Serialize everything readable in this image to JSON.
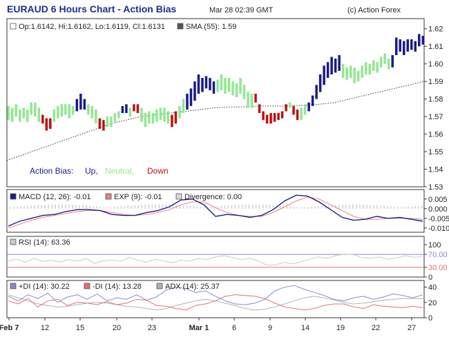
{
  "header": {
    "title": "EURAUD 6 Hours Chart - Action Bias",
    "timestamp": "Mar 28 02:39 GMT",
    "copyright": "(c) Action Forex"
  },
  "colors": {
    "up": "#1a1a8c",
    "neutral": "#90e890",
    "down": "#c01010",
    "sma": "#333333",
    "macd": "#1a1a8c",
    "ema": "#e88080",
    "divergence": "#d8d8d8",
    "rsi": "#8888cc",
    "rsi_level_high": "#8888cc",
    "rsi_level_low": "#e07070",
    "plus_di": "#8888cc",
    "minus_di": "#e07070",
    "adx": "#b0b0b0"
  },
  "chart_data": [
    {
      "type": "bar",
      "name": "price",
      "legend": {
        "ohlc": "Op:1.6142, Hi:1.6162, Lo:1.6119, Cl:1.6131",
        "sma": "SMA (55): 1.59"
      },
      "bias_labels": {
        "label": "Action Bias:",
        "up": "Up,",
        "neutral": "Neutral,",
        "down": "Down"
      },
      "ylim": [
        1.53,
        1.625
      ],
      "y_ticks": [
        "1.62",
        "1.61",
        "1.60",
        "1.59",
        "1.58",
        "1.57",
        "1.56",
        "1.55",
        "1.54",
        "1.53"
      ],
      "x_tick_labels": [
        "Feb 7",
        "12",
        "15",
        "20",
        "23",
        "Mar 1",
        "6",
        "9",
        "14",
        "19",
        "22",
        "27"
      ],
      "bars": [
        [
          1.568,
          1.576,
          "n"
        ],
        [
          1.567,
          1.575,
          "n"
        ],
        [
          1.57,
          1.577,
          "n"
        ],
        [
          1.567,
          1.574,
          "n"
        ],
        [
          1.569,
          1.575,
          "n"
        ],
        [
          1.567,
          1.574,
          "n"
        ],
        [
          1.571,
          1.578,
          "n"
        ],
        [
          1.57,
          1.578,
          "n"
        ],
        [
          1.567,
          1.575,
          "n"
        ],
        [
          1.566,
          1.571,
          "d"
        ],
        [
          1.562,
          1.569,
          "d"
        ],
        [
          1.563,
          1.569,
          "d"
        ],
        [
          1.567,
          1.574,
          "n"
        ],
        [
          1.569,
          1.576,
          "n"
        ],
        [
          1.57,
          1.577,
          "n"
        ],
        [
          1.571,
          1.577,
          "n"
        ],
        [
          1.569,
          1.577,
          "n"
        ],
        [
          1.571,
          1.576,
          "n"
        ],
        [
          1.573,
          1.58,
          "u"
        ],
        [
          1.574,
          1.583,
          "u"
        ],
        [
          1.574,
          1.58,
          "u"
        ],
        [
          1.571,
          1.577,
          "n"
        ],
        [
          1.569,
          1.576,
          "n"
        ],
        [
          1.566,
          1.574,
          "n"
        ],
        [
          1.563,
          1.569,
          "d"
        ],
        [
          1.562,
          1.568,
          "d"
        ],
        [
          1.564,
          1.57,
          "n"
        ],
        [
          1.564,
          1.57,
          "n"
        ],
        [
          1.567,
          1.572,
          "n"
        ],
        [
          1.569,
          1.573,
          "n"
        ],
        [
          1.572,
          1.576,
          "u"
        ],
        [
          1.572,
          1.577,
          "u"
        ],
        [
          1.57,
          1.575,
          "n"
        ],
        [
          1.573,
          1.577,
          "d"
        ],
        [
          1.572,
          1.577,
          "d"
        ],
        [
          1.567,
          1.575,
          "n"
        ],
        [
          1.564,
          1.572,
          "n"
        ],
        [
          1.566,
          1.573,
          "n"
        ],
        [
          1.566,
          1.572,
          "n"
        ],
        [
          1.567,
          1.574,
          "n"
        ],
        [
          1.568,
          1.575,
          "n"
        ],
        [
          1.567,
          1.575,
          "n"
        ],
        [
          1.566,
          1.573,
          "n"
        ],
        [
          1.564,
          1.571,
          "d"
        ],
        [
          1.566,
          1.573,
          "d"
        ],
        [
          1.569,
          1.576,
          "n"
        ],
        [
          1.572,
          1.58,
          "n"
        ],
        [
          1.574,
          1.583,
          "u"
        ],
        [
          1.576,
          1.586,
          "u"
        ],
        [
          1.579,
          1.59,
          "u"
        ],
        [
          1.583,
          1.594,
          "u"
        ],
        [
          1.584,
          1.592,
          "u"
        ],
        [
          1.586,
          1.593,
          "u"
        ],
        [
          1.585,
          1.592,
          "u"
        ],
        [
          1.583,
          1.59,
          "u"
        ],
        [
          1.584,
          1.591,
          "n"
        ],
        [
          1.585,
          1.594,
          "n"
        ],
        [
          1.583,
          1.592,
          "n"
        ],
        [
          1.584,
          1.592,
          "n"
        ],
        [
          1.582,
          1.59,
          "n"
        ],
        [
          1.581,
          1.589,
          "n"
        ],
        [
          1.583,
          1.592,
          "n"
        ],
        [
          1.58,
          1.588,
          "n"
        ],
        [
          1.575,
          1.584,
          "n"
        ],
        [
          1.575,
          1.583,
          "n"
        ],
        [
          1.578,
          1.583,
          "d"
        ],
        [
          1.572,
          1.577,
          "d"
        ],
        [
          1.568,
          1.573,
          "d"
        ],
        [
          1.566,
          1.571,
          "d"
        ],
        [
          1.566,
          1.572,
          "d"
        ],
        [
          1.567,
          1.572,
          "d"
        ],
        [
          1.568,
          1.572,
          "d"
        ],
        [
          1.569,
          1.573,
          "d"
        ],
        [
          1.573,
          1.577,
          "d"
        ],
        [
          1.575,
          1.578,
          "n"
        ],
        [
          1.571,
          1.576,
          "d"
        ],
        [
          1.568,
          1.574,
          "d"
        ],
        [
          1.568,
          1.575,
          "n"
        ],
        [
          1.571,
          1.577,
          "n"
        ],
        [
          1.573,
          1.578,
          "u"
        ],
        [
          1.576,
          1.582,
          "u"
        ],
        [
          1.58,
          1.588,
          "u"
        ],
        [
          1.584,
          1.594,
          "u"
        ],
        [
          1.588,
          1.599,
          "u"
        ],
        [
          1.592,
          1.601,
          "u"
        ],
        [
          1.594,
          1.604,
          "u"
        ],
        [
          1.595,
          1.603,
          "u"
        ],
        [
          1.596,
          1.605,
          "u"
        ],
        [
          1.592,
          1.6,
          "n"
        ],
        [
          1.591,
          1.598,
          "n"
        ],
        [
          1.592,
          1.599,
          "n"
        ],
        [
          1.589,
          1.598,
          "n"
        ],
        [
          1.59,
          1.596,
          "n"
        ],
        [
          1.592,
          1.599,
          "n"
        ],
        [
          1.594,
          1.601,
          "n"
        ],
        [
          1.594,
          1.6,
          "n"
        ],
        [
          1.596,
          1.602,
          "n"
        ],
        [
          1.595,
          1.601,
          "n"
        ],
        [
          1.598,
          1.604,
          "n"
        ],
        [
          1.6,
          1.606,
          "n"
        ],
        [
          1.597,
          1.603,
          "n"
        ],
        [
          1.598,
          1.605,
          "u"
        ],
        [
          1.605,
          1.615,
          "u"
        ],
        [
          1.607,
          1.614,
          "u"
        ],
        [
          1.605,
          1.613,
          "u"
        ],
        [
          1.607,
          1.614,
          "u"
        ],
        [
          1.608,
          1.614,
          "u"
        ],
        [
          1.607,
          1.613,
          "u"
        ],
        [
          1.61,
          1.617,
          "u"
        ],
        [
          1.611,
          1.616,
          "u"
        ]
      ],
      "sma_line": [
        1.545,
        1.548,
        1.551,
        1.554,
        1.557,
        1.56,
        1.563,
        1.566,
        1.568,
        1.57,
        1.571,
        1.572,
        1.573,
        1.574,
        1.575,
        1.5755,
        1.5755,
        1.576,
        1.576,
        1.576,
        1.5765,
        1.577,
        1.578,
        1.58,
        1.582,
        1.584,
        1.586,
        1.588,
        1.59
      ]
    },
    {
      "type": "line",
      "name": "macd",
      "legend": {
        "macd": "MACD (12, 26): -0.01",
        "ema": "EXP (9): -0.01",
        "divergence": "Divergence: 0.00"
      },
      "y_ticks": [
        "0.005",
        "0.000",
        "-0.005",
        "-0.010"
      ],
      "ylim": [
        -0.0115,
        0.0085
      ],
      "macd": [
        -0.009,
        -0.0065,
        -0.005,
        -0.0035,
        -0.003,
        -0.0015,
        -0.0005,
        -0.0005,
        -0.001,
        -0.003,
        -0.0035,
        -0.0035,
        -0.002,
        -0.001,
        0.001,
        0.0045,
        0.005,
        0.002,
        -0.004,
        -0.003,
        -0.0035,
        -0.0045,
        -0.0035,
        -0.0005,
        0.004,
        0.007,
        0.0065,
        0.0035,
        -0.0005,
        -0.0045,
        -0.006,
        -0.0055,
        -0.004,
        -0.005,
        -0.0045,
        -0.0055,
        -0.0065
      ],
      "ema": [
        -0.01,
        -0.008,
        -0.006,
        -0.0045,
        -0.0035,
        -0.0025,
        -0.0015,
        -0.001,
        -0.001,
        -0.002,
        -0.003,
        -0.0035,
        -0.003,
        -0.002,
        -0.0005,
        0.002,
        0.0035,
        0.0035,
        0.0005,
        -0.002,
        -0.0035,
        -0.004,
        -0.004,
        -0.002,
        0.001,
        0.004,
        0.006,
        0.005,
        0.002,
        -0.001,
        -0.004,
        -0.0055,
        -0.0055,
        -0.005,
        -0.005,
        -0.005,
        -0.0055
      ]
    },
    {
      "type": "line",
      "name": "rsi",
      "legend": {
        "rsi": "RSI (14): 63.36"
      },
      "y_ticks": [
        "100",
        "70.00",
        "30.00",
        "0"
      ],
      "ylim": [
        0,
        100
      ],
      "levels": [
        70,
        30
      ],
      "values": [
        50,
        55,
        45,
        58,
        48,
        52,
        46,
        54,
        49,
        57,
        42,
        50,
        53,
        48,
        61,
        52,
        46,
        55,
        50,
        44,
        52,
        49,
        57,
        54,
        62,
        66,
        60,
        54,
        58,
        49,
        36,
        38,
        45,
        41,
        48,
        56,
        62,
        58,
        67,
        71,
        69,
        60,
        58,
        62,
        55,
        59,
        66,
        61,
        64
      ]
    },
    {
      "type": "line",
      "name": "dmi",
      "legend": {
        "plus_di": "+DI (14): 30.22",
        "minus_di": "-DI (14): 13.28",
        "adx": "ADX (14): 25.37"
      },
      "y_ticks": [
        "40",
        "20",
        "0"
      ],
      "ylim": [
        0,
        45
      ],
      "plus_di": [
        28,
        22,
        30,
        25,
        32,
        20,
        27,
        30,
        24,
        31,
        22,
        26,
        24,
        30,
        23,
        27,
        36,
        40,
        38,
        33,
        35,
        28,
        22,
        18,
        17,
        19,
        24,
        35,
        40,
        42,
        37,
        33,
        29,
        24,
        22,
        26,
        28,
        24,
        27,
        31,
        29,
        26,
        30
      ],
      "minus_di": [
        22,
        18,
        25,
        14,
        22,
        24,
        16,
        20,
        19,
        17,
        21,
        17,
        19,
        24,
        23,
        16,
        15,
        12,
        10,
        16,
        18,
        22,
        28,
        30,
        29,
        28,
        25,
        19,
        14,
        12,
        10,
        12,
        16,
        18,
        18,
        14,
        12,
        17,
        15,
        14,
        13,
        15,
        13
      ],
      "adx": [
        30,
        26,
        22,
        18,
        16,
        14,
        15,
        17,
        19,
        20,
        19,
        17,
        15,
        14,
        12,
        10,
        12,
        16,
        19,
        22,
        24,
        22,
        19,
        16,
        12,
        10,
        11,
        14,
        18,
        22,
        26,
        28,
        26,
        23,
        20,
        18,
        19,
        21,
        23,
        24,
        25,
        25,
        25
      ]
    }
  ]
}
